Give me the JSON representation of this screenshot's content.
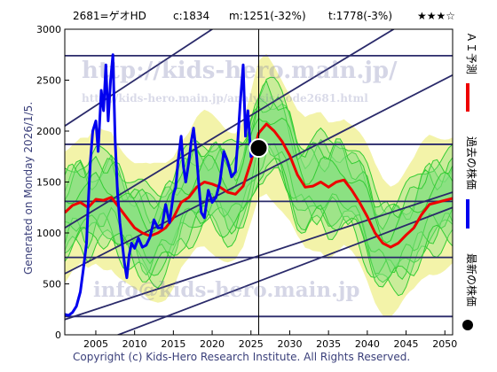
{
  "header": {
    "code_name": "2681=ゲオHD",
    "current": "c:1834",
    "min": "m:1251(-32%)",
    "target": "t:1778(-3%)",
    "stars": "★★★☆"
  },
  "side_label": "Generated on Monday 2026/1/5.",
  "footer": "Copyright (c) Kids-Hero Research Institute. All Rights Reserved.",
  "watermarks": {
    "url_big": "http://kids-hero.main.jp/",
    "url_small": "http://kids-hero.main.jp/analysis/code2681.html",
    "email": "info@kids-hero.main.jp"
  },
  "legend": {
    "forecast": "ＡＩ予測",
    "past": "過去の株価",
    "latest": "最新の株価"
  },
  "colors": {
    "past": "#0000ee",
    "forecast": "#ee0000",
    "band_green": "#33cc33",
    "band_yellow": "#f2f2a0",
    "channel": "#2a2a6a",
    "latest_dot": "#000000"
  },
  "chart_data": {
    "type": "line",
    "xlim": [
      2001,
      2051
    ],
    "ylim": [
      0,
      3000
    ],
    "x_ticks": [
      2005,
      2010,
      2015,
      2020,
      2025,
      2030,
      2035,
      2040,
      2045,
      2050
    ],
    "y_ticks": [
      0,
      500,
      1000,
      1500,
      2000,
      2500,
      3000
    ],
    "horizontal_levels": [
      180,
      760,
      1310,
      1870,
      2740
    ],
    "latest_point": {
      "x": 2026.0,
      "y": 1834
    },
    "series": [
      {
        "kind": "past",
        "x": [
          2001.0,
          2001.5,
          2002.0,
          2002.5,
          2003.0,
          2003.4,
          2003.8,
          2004.0,
          2004.3,
          2004.6,
          2005.0,
          2005.3,
          2005.7,
          2006.0,
          2006.3,
          2006.6,
          2006.9,
          2007.2,
          2007.5,
          2007.8,
          2008.1,
          2008.4,
          2008.7,
          2009.0,
          2009.3,
          2009.6,
          2010.0,
          2010.5,
          2011.0,
          2011.5,
          2012.0,
          2012.5,
          2013.0,
          2013.5,
          2014.0,
          2014.5,
          2015.0,
          2015.3,
          2015.6,
          2016.0,
          2016.3,
          2016.6,
          2017.0,
          2017.3,
          2017.6,
          2018.0,
          2018.3,
          2018.6,
          2019.0,
          2019.5,
          2020.0,
          2020.5,
          2021.0,
          2021.5,
          2022.0,
          2022.5,
          2023.0,
          2023.3,
          2023.6,
          2024.0,
          2024.3,
          2024.6,
          2025.0,
          2025.5,
          2026.0
        ],
        "y": [
          200,
          190,
          220,
          280,
          420,
          650,
          900,
          1250,
          1700,
          2000,
          2100,
          1800,
          2400,
          2200,
          2650,
          2100,
          2500,
          2750,
          1900,
          1400,
          1100,
          900,
          700,
          560,
          780,
          900,
          850,
          950,
          860,
          880,
          960,
          1130,
          1050,
          1050,
          1280,
          1100,
          1380,
          1450,
          1700,
          1950,
          1650,
          1500,
          1700,
          1900,
          2030,
          1750,
          1450,
          1200,
          1150,
          1420,
          1300,
          1350,
          1500,
          1800,
          1700,
          1550,
          1600,
          1900,
          2250,
          2650,
          1950,
          2200,
          1750,
          1800,
          1834
        ]
      },
      {
        "kind": "forecast",
        "x": [
          2001.0,
          2002.0,
          2003.0,
          2004.0,
          2005.0,
          2006.0,
          2007.0,
          2008.0,
          2009.0,
          2010.0,
          2011.0,
          2012.0,
          2013.0,
          2014.0,
          2015.0,
          2016.0,
          2017.0,
          2018.0,
          2019.0,
          2020.0,
          2021.0,
          2022.0,
          2023.0,
          2024.0,
          2025.0,
          2026.0,
          2027.0,
          2028.0,
          2029.0,
          2030.0,
          2031.0,
          2032.0,
          2033.0,
          2034.0,
          2035.0,
          2036.0,
          2037.0,
          2038.0,
          2039.0,
          2040.0,
          2041.0,
          2042.0,
          2043.0,
          2044.0,
          2045.0,
          2046.0,
          2047.0,
          2048.0,
          2049.0,
          2050.0,
          2051.0
        ],
        "y": [
          1200,
          1270,
          1300,
          1250,
          1330,
          1320,
          1350,
          1250,
          1150,
          1050,
          1000,
          970,
          1000,
          1050,
          1150,
          1300,
          1350,
          1450,
          1500,
          1480,
          1450,
          1400,
          1380,
          1460,
          1700,
          1980,
          2070,
          2000,
          1900,
          1760,
          1570,
          1450,
          1460,
          1500,
          1450,
          1500,
          1520,
          1420,
          1300,
          1160,
          1000,
          900,
          860,
          900,
          980,
          1050,
          1180,
          1280,
          1300,
          1320,
          1340
        ]
      }
    ]
  }
}
